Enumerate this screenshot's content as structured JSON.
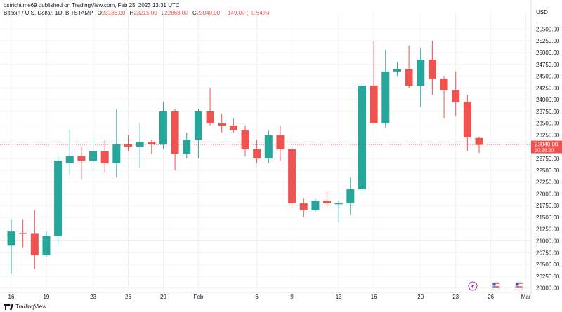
{
  "header": {
    "published": "ostrichtime69 published on TradingView.com, Feb 25, 2023 13:31 UTC",
    "symbol": "Bitcoin / U.S. Dollar, 1D, BITSTAMP",
    "o_label": "O",
    "o_value": "23186.00",
    "h_label": "H",
    "h_value": "23215.00",
    "l_label": "L",
    "l_value": "22868.00",
    "c_label": "C",
    "c_value": "23040.00",
    "change": "−149.00 (−0.64%)"
  },
  "currency": "USD",
  "price_tag": {
    "price": "23040.00",
    "countdown": "10:28:20"
  },
  "footer": {
    "brand": "TradingView"
  },
  "colors": {
    "up": "#26a69a",
    "down": "#ef5350",
    "grid": "#eef0f4",
    "axis_text": "#131722",
    "price_line": "#ef5350"
  },
  "events": [
    {
      "icon": "lightning-icon",
      "color": "#9c27b0",
      "date": "Feb 24"
    },
    {
      "icon": "us-flag-icon",
      "color": "#e57373",
      "date": "Feb 26"
    },
    {
      "icon": "us-flag-icon",
      "color": "#e57373",
      "date": "Feb 28"
    }
  ],
  "chart_data": {
    "type": "candlestick",
    "title": "Bitcoin / U.S. Dollar, 1D, BITSTAMP",
    "ylim": [
      19950,
      25700
    ],
    "y_ticks": [
      20000,
      20250,
      20500,
      20750,
      21000,
      21250,
      21500,
      21750,
      22000,
      22250,
      22500,
      22750,
      23000,
      23250,
      23500,
      23750,
      24000,
      24250,
      24500,
      24750,
      25000,
      25250,
      25500
    ],
    "x_ticks": [
      {
        "label": "16",
        "index": 0
      },
      {
        "label": "19",
        "index": 3
      },
      {
        "label": "23",
        "index": 7
      },
      {
        "label": "26",
        "index": 10
      },
      {
        "label": "29",
        "index": 13
      },
      {
        "label": "Feb",
        "index": 16
      },
      {
        "label": "6",
        "index": 21
      },
      {
        "label": "9",
        "index": 24
      },
      {
        "label": "13",
        "index": 28
      },
      {
        "label": "16",
        "index": 31
      },
      {
        "label": "20",
        "index": 35
      },
      {
        "label": "23",
        "index": 38
      },
      {
        "label": "26",
        "index": 41
      },
      {
        "label": "Mar",
        "index": 44
      }
    ],
    "candles": [
      {
        "date": "Jan 16",
        "o": 20900,
        "h": 21450,
        "l": 20300,
        "c": 21200
      },
      {
        "date": "Jan 17",
        "o": 21170,
        "h": 21450,
        "l": 20850,
        "c": 21150
      },
      {
        "date": "Jan 18",
        "o": 21150,
        "h": 21650,
        "l": 20400,
        "c": 20700
      },
      {
        "date": "Jan 19",
        "o": 20700,
        "h": 21200,
        "l": 20650,
        "c": 21100
      },
      {
        "date": "Jan 20",
        "o": 21100,
        "h": 22800,
        "l": 20900,
        "c": 22700
      },
      {
        "date": "Jan 21",
        "o": 22650,
        "h": 23350,
        "l": 22400,
        "c": 22800
      },
      {
        "date": "Jan 22",
        "o": 22800,
        "h": 23000,
        "l": 22300,
        "c": 22700
      },
      {
        "date": "Jan 23",
        "o": 22700,
        "h": 23200,
        "l": 22500,
        "c": 22900
      },
      {
        "date": "Jan 24",
        "o": 22900,
        "h": 23150,
        "l": 22450,
        "c": 22650
      },
      {
        "date": "Jan 25",
        "o": 22650,
        "h": 23800,
        "l": 22350,
        "c": 23050
      },
      {
        "date": "Jan 26",
        "o": 23050,
        "h": 23250,
        "l": 22900,
        "c": 23000
      },
      {
        "date": "Jan 27",
        "o": 23000,
        "h": 23500,
        "l": 22550,
        "c": 23100
      },
      {
        "date": "Jan 28",
        "o": 23100,
        "h": 23150,
        "l": 22850,
        "c": 23050
      },
      {
        "date": "Jan 29",
        "o": 23050,
        "h": 23950,
        "l": 22950,
        "c": 23750
      },
      {
        "date": "Jan 30",
        "o": 23750,
        "h": 23800,
        "l": 22500,
        "c": 22850
      },
      {
        "date": "Jan 31",
        "o": 22850,
        "h": 23300,
        "l": 22750,
        "c": 23150
      },
      {
        "date": "Feb 1",
        "o": 23150,
        "h": 23800,
        "l": 22750,
        "c": 23750
      },
      {
        "date": "Feb 2",
        "o": 23750,
        "h": 24250,
        "l": 23450,
        "c": 23500
      },
      {
        "date": "Feb 3",
        "o": 23500,
        "h": 23700,
        "l": 23300,
        "c": 23450
      },
      {
        "date": "Feb 4",
        "o": 23450,
        "h": 23600,
        "l": 23300,
        "c": 23350
      },
      {
        "date": "Feb 5",
        "o": 23350,
        "h": 23450,
        "l": 22800,
        "c": 22950
      },
      {
        "date": "Feb 6",
        "o": 22950,
        "h": 23150,
        "l": 22650,
        "c": 22750
      },
      {
        "date": "Feb 7",
        "o": 22750,
        "h": 23350,
        "l": 22650,
        "c": 23250
      },
      {
        "date": "Feb 8",
        "o": 23250,
        "h": 23450,
        "l": 22700,
        "c": 22950
      },
      {
        "date": "Feb 9",
        "o": 22950,
        "h": 23000,
        "l": 21700,
        "c": 21800
      },
      {
        "date": "Feb 10",
        "o": 21800,
        "h": 21900,
        "l": 21500,
        "c": 21650
      },
      {
        "date": "Feb 11",
        "o": 21650,
        "h": 21900,
        "l": 21600,
        "c": 21850
      },
      {
        "date": "Feb 12",
        "o": 21850,
        "h": 22050,
        "l": 21700,
        "c": 21800
      },
      {
        "date": "Feb 13",
        "o": 21800,
        "h": 21850,
        "l": 21400,
        "c": 21800
      },
      {
        "date": "Feb 14",
        "o": 21800,
        "h": 22350,
        "l": 21550,
        "c": 22100
      },
      {
        "date": "Feb 15",
        "o": 22100,
        "h": 24350,
        "l": 22000,
        "c": 24300
      },
      {
        "date": "Feb 16",
        "o": 24300,
        "h": 25250,
        "l": 23500,
        "c": 23500
      },
      {
        "date": "Feb 17",
        "o": 23500,
        "h": 25050,
        "l": 23400,
        "c": 24600
      },
      {
        "date": "Feb 18",
        "o": 24600,
        "h": 24800,
        "l": 24500,
        "c": 24650
      },
      {
        "date": "Feb 19",
        "o": 24650,
        "h": 25150,
        "l": 24250,
        "c": 24300
      },
      {
        "date": "Feb 20",
        "o": 24300,
        "h": 25100,
        "l": 23850,
        "c": 24850
      },
      {
        "date": "Feb 21",
        "o": 24850,
        "h": 25250,
        "l": 24100,
        "c": 24450
      },
      {
        "date": "Feb 22",
        "o": 24450,
        "h": 24500,
        "l": 23600,
        "c": 24200
      },
      {
        "date": "Feb 23",
        "o": 24200,
        "h": 24600,
        "l": 23650,
        "c": 23950
      },
      {
        "date": "Feb 24",
        "o": 23950,
        "h": 24100,
        "l": 22900,
        "c": 23200
      },
      {
        "date": "Feb 25",
        "o": 23186,
        "h": 23215,
        "l": 22868,
        "c": 23040
      }
    ]
  }
}
